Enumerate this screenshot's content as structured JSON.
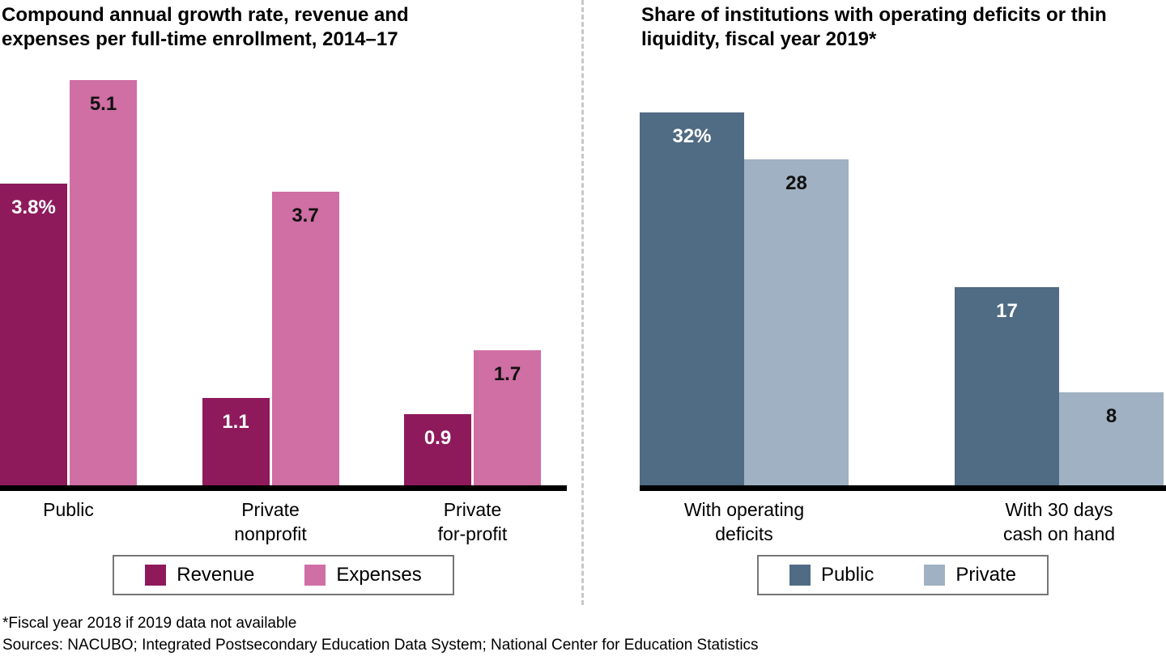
{
  "chart_data": [
    {
      "type": "bar",
      "title": "Compound annual growth rate, revenue and expenses per full-time enrollment, 2014–17",
      "categories": [
        "Public",
        "Private\nnonprofit",
        "Private\nfor-profit"
      ],
      "series": [
        {
          "name": "Revenue",
          "color": "#8e1a5c",
          "label_color": "#ffffff",
          "values": [
            3.8,
            1.1,
            0.9
          ],
          "labels": [
            "3.8%",
            "1.1",
            "0.9"
          ]
        },
        {
          "name": "Expenses",
          "color": "#cf6fa4",
          "label_color": "#111111",
          "values": [
            5.1,
            3.7,
            1.7
          ],
          "labels": [
            "5.1",
            "3.7",
            "1.7"
          ]
        }
      ],
      "ylim": [
        0,
        5.5
      ],
      "xlabel": "",
      "ylabel": "",
      "grid": false,
      "legend_position": "bottom"
    },
    {
      "type": "bar",
      "title": "Share of institutions with operating deficits or thin liquidity, fiscal year 2019*",
      "categories": [
        "With operating\ndeficits",
        "With 30 days\ncash on hand"
      ],
      "series": [
        {
          "name": "Public",
          "color": "#506b84",
          "label_color": "#ffffff",
          "values": [
            32,
            17
          ],
          "labels": [
            "32%",
            "17"
          ]
        },
        {
          "name": "Private",
          "color": "#9fb1c2",
          "label_color": "#111111",
          "values": [
            28,
            8
          ],
          "labels": [
            "28",
            "8"
          ]
        }
      ],
      "ylim": [
        0,
        37.5
      ],
      "xlabel": "",
      "ylabel": "",
      "grid": false,
      "legend_position": "bottom"
    }
  ],
  "footnotes": {
    "line1": "*Fiscal year 2018 if 2019 data not available",
    "line2": "Sources: NACUBO; Integrated Postsecondary Education Data System; National Center for Education Statistics"
  }
}
